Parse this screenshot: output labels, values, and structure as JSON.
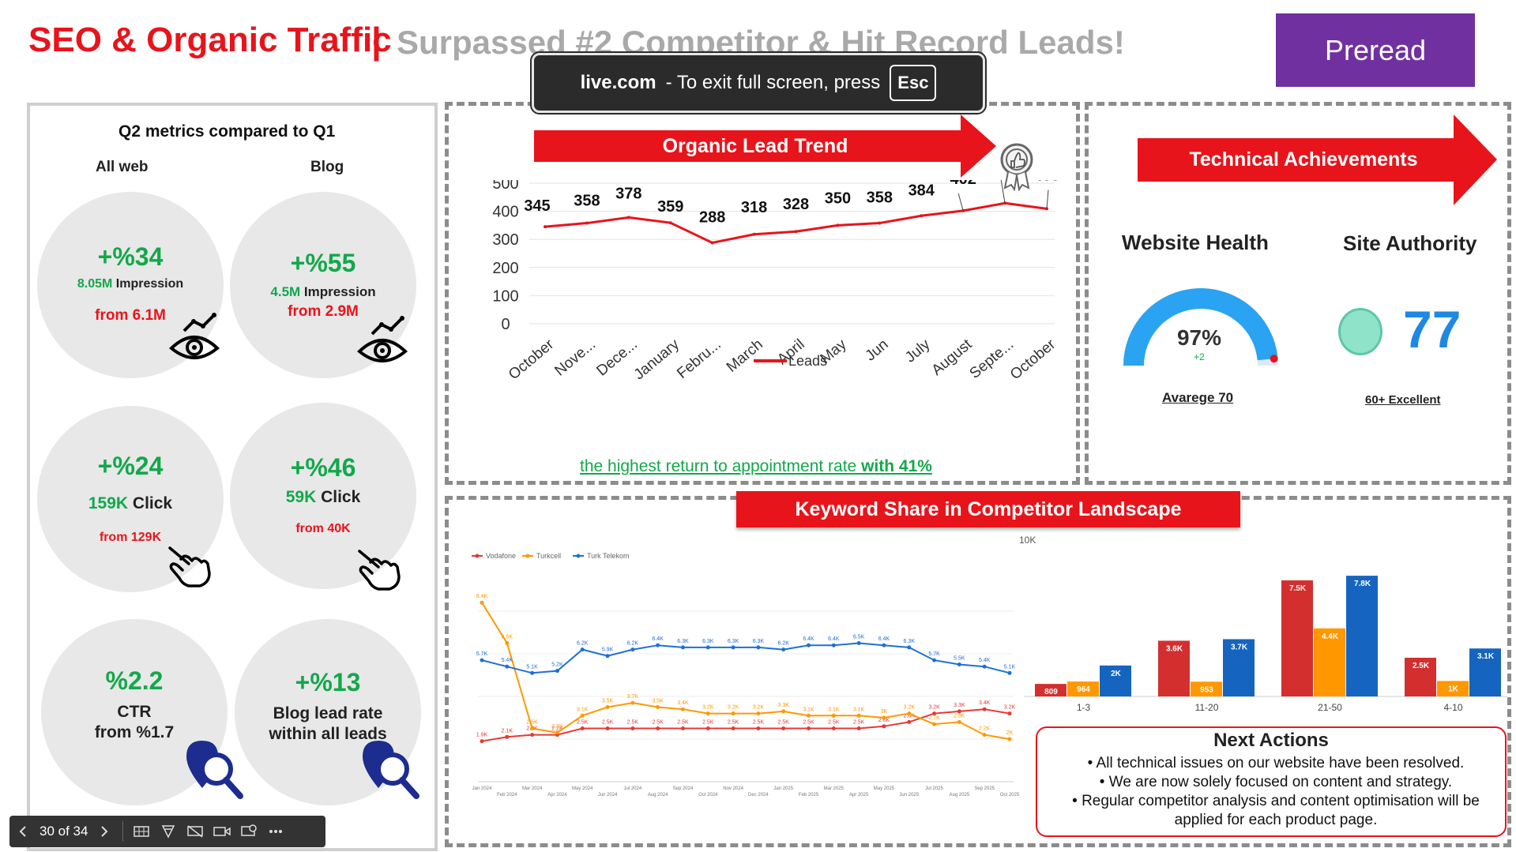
{
  "header": {
    "title_main": "SEO & Organic Traffic",
    "title_sep": "|",
    "title_sub": "Surpassed #2 Competitor & Hit Record Leads!",
    "preread_label": "Preread"
  },
  "toast": {
    "site": "live.com",
    "message": "-  To exit full screen, press",
    "key": "Esc"
  },
  "left_panel": {
    "title": "Q2 metrics compared to Q1",
    "col_all_web": "All web",
    "col_blog": "Blog",
    "metrics": [
      {
        "pct": "+%34",
        "value": "8.05M",
        "unit": " Impression",
        "from": "from 6.1M",
        "icon": "eye-trend-icon"
      },
      {
        "pct": "+%55",
        "value": "4.5M",
        "unit": " Impression",
        "from": "from 2.9M",
        "icon": "eye-trend-icon"
      },
      {
        "pct": "+%24",
        "value": "159K",
        "unit": " Click",
        "from": "from 129K",
        "icon": "hand-pointer-icon"
      },
      {
        "pct": "+%46",
        "value": "59K",
        "unit": " Click",
        "from": "from 40K",
        "icon": "hand-pointer-icon"
      },
      {
        "pct": "%2.2",
        "line1": "CTR",
        "line2": "from %1.7",
        "icon": "location-search-icon"
      },
      {
        "pct": "+%13",
        "line1": "Blog lead rate",
        "line2": "within all leads",
        "icon": "location-search-icon"
      }
    ]
  },
  "trend": {
    "banner": "Organic Lead Trend",
    "note_prefix": "the highest return to appointment rate ",
    "note_bold": "with 41%"
  },
  "tech": {
    "banner": "Technical Achievements",
    "website_health": {
      "title": "Website Health",
      "value": "97%",
      "delta": "+2",
      "sub": "Avarege 70",
      "fraction": 0.97
    },
    "site_authority": {
      "title": "Site Authority",
      "value": "77",
      "sub": "60+ Excellent"
    }
  },
  "keyword": {
    "banner": "Keyword Share in Competitor Landscape"
  },
  "next_actions": {
    "title": "Next Actions",
    "items": [
      "All technical issues on our website have been resolved.",
      "We are now solely focused on content and strategy.",
      "Regular competitor analysis and content optimisation will be applied for each product page."
    ]
  },
  "toolbar": {
    "counter": "30 of 34"
  },
  "colors": {
    "accent_red": "#e8141b",
    "green": "#12a84a",
    "purple": "#7130a0",
    "blue": "#1e88e5",
    "orange": "#ff9800"
  },
  "chart_data": [
    {
      "type": "line",
      "title": "Organic Lead Trend",
      "categories": [
        "October",
        "Nove...",
        "Dece...",
        "January",
        "Febru...",
        "March",
        "April",
        "May",
        "Jun",
        "July",
        "August",
        "Septe...",
        "October"
      ],
      "series": [
        {
          "name": "Leads",
          "values": [
            345,
            358,
            378,
            359,
            288,
            318,
            328,
            350,
            358,
            384,
            402,
            429,
            409
          ]
        }
      ],
      "ylim": [
        0,
        500
      ],
      "yticks": [
        "500",
        "400",
        "300",
        "200",
        "100",
        "0"
      ]
    },
    {
      "type": "line",
      "title": "",
      "legend": [
        "Vodafone",
        "Turkcell",
        "Turk Telekom"
      ],
      "categories": [
        "Jan 2024",
        "Feb 2024",
        "Mar 2024",
        "Apr 2024",
        "May 2024",
        "Jun 2024",
        "Jul 2024",
        "Aug 2024",
        "Sep 2024",
        "Oct 2024",
        "Nov 2024",
        "Dec 2024",
        "Jan 2025",
        "Feb 2025",
        "Mar 2025",
        "Apr 2025",
        "May 2025",
        "Jun 2025",
        "Jul 2025",
        "Aug 2025",
        "Sep 2025",
        "Oct 2025"
      ],
      "series": [
        {
          "name": "Vodafone",
          "values": [
            1.9,
            2.1,
            2.2,
            2.2,
            2.5,
            2.5,
            2.5,
            2.5,
            2.5,
            2.5,
            2.5,
            2.5,
            2.5,
            2.5,
            2.5,
            2.5,
            2.6,
            2.8,
            3.2,
            3.3,
            3.4,
            3.2
          ]
        },
        {
          "name": "Turkcell",
          "values": [
            8.4,
            6.5,
            2.5,
            2.3,
            3.1,
            3.5,
            3.7,
            3.5,
            3.4,
            3.2,
            3.2,
            3.2,
            3.3,
            3.1,
            3.1,
            3.1,
            3.0,
            3.2,
            2.7,
            2.8,
            2.2,
            2.0
          ]
        },
        {
          "name": "Turk Telekom",
          "values": [
            5.7,
            5.4,
            5.1,
            5.2,
            6.2,
            5.9,
            6.2,
            6.4,
            6.3,
            6.3,
            6.3,
            6.3,
            6.2,
            6.4,
            6.4,
            6.5,
            6.4,
            6.3,
            5.7,
            5.5,
            5.4,
            5.1
          ]
        }
      ],
      "ylim": [
        0,
        10
      ]
    },
    {
      "type": "bar",
      "title": "",
      "ylabel_top": "10K",
      "categories": [
        "1-3",
        "11-20",
        "21-50",
        "4-10"
      ],
      "series": [
        {
          "name": "Vodafone",
          "values": [
            0.809,
            3.6,
            7.5,
            2.5
          ],
          "labels": [
            "809",
            "3.6K",
            "7.5K",
            "2.5K"
          ]
        },
        {
          "name": "Turkcell",
          "values": [
            0.964,
            0.953,
            4.4,
            1.0
          ],
          "labels": [
            "964",
            "953",
            "4.4K",
            "1K"
          ]
        },
        {
          "name": "Turk Telekom",
          "values": [
            2.0,
            3.7,
            7.8,
            3.1
          ],
          "labels": [
            "2K",
            "3.7K",
            "7.8K",
            "3.1K"
          ]
        }
      ],
      "ylim": [
        0,
        10
      ]
    }
  ]
}
